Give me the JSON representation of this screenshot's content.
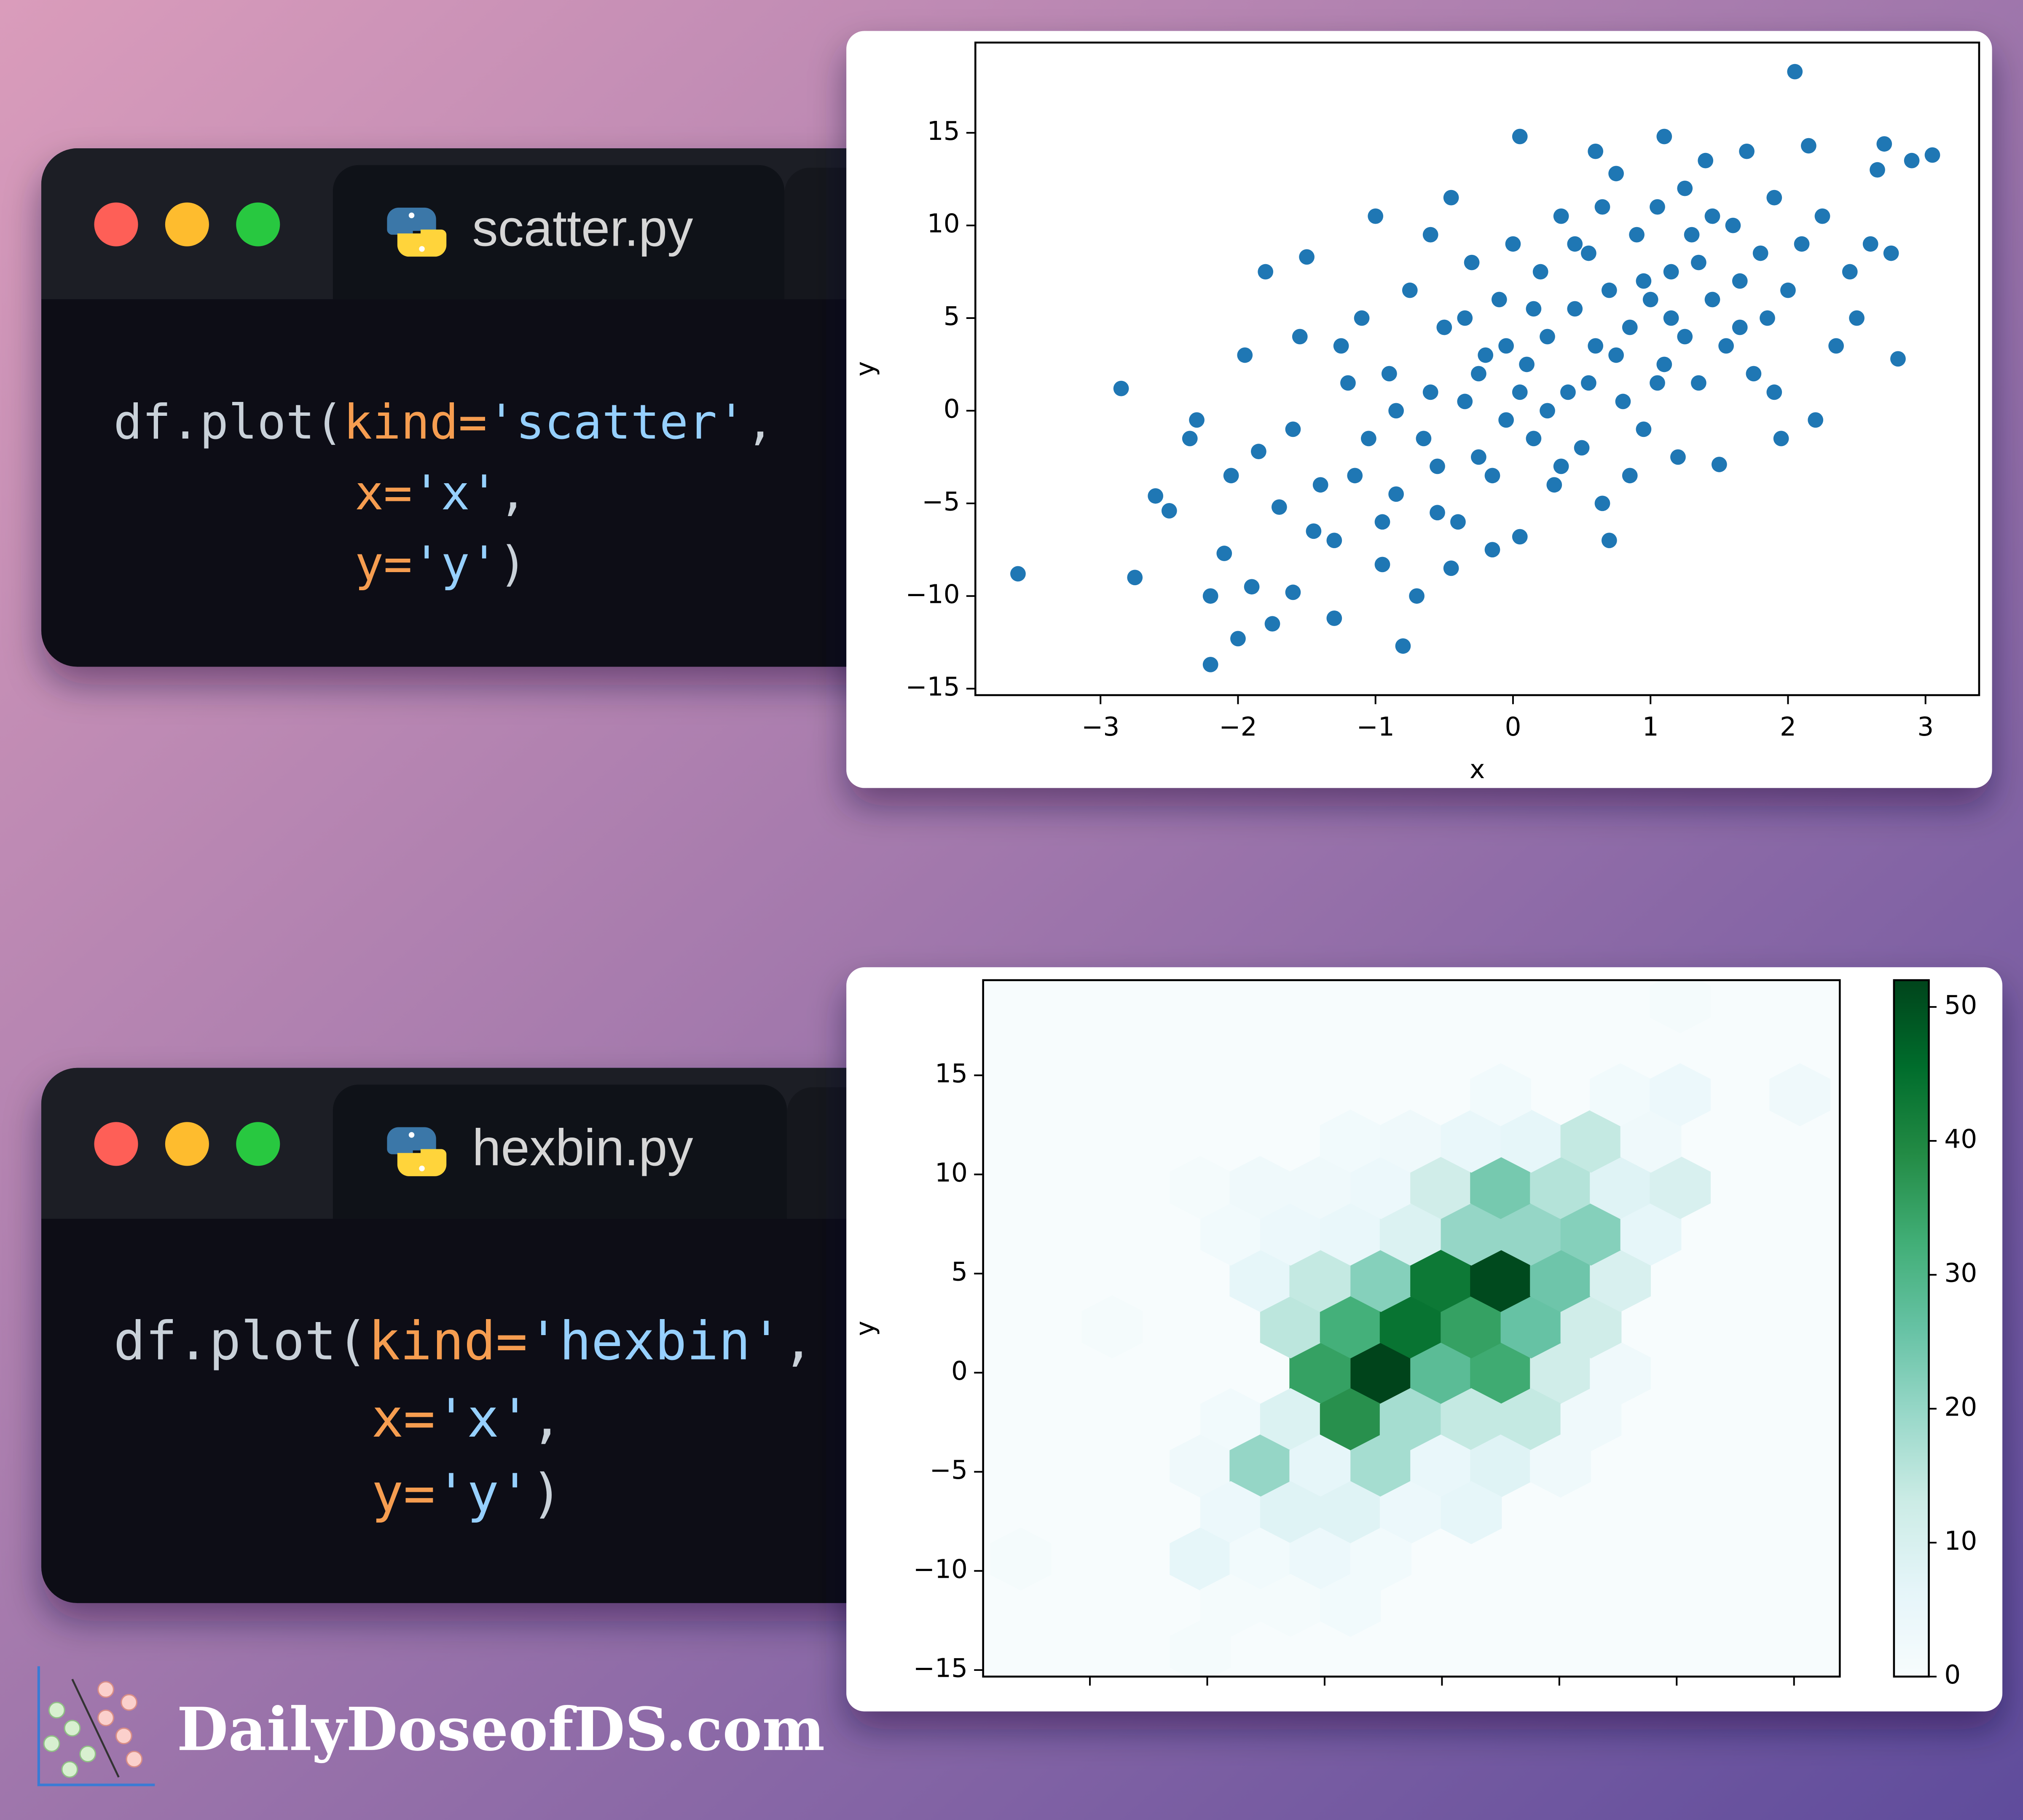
{
  "windows": [
    {
      "filename": "scatter.py",
      "code": [
        [
          "df.plot(",
          "kind=",
          "'scatter'",
          ","
        ],
        [
          "x=",
          "'x'",
          ","
        ],
        [
          "y=",
          "'y'",
          ")"
        ]
      ]
    },
    {
      "filename": "hexbin.py",
      "code": [
        [
          "df.plot(",
          "kind=",
          "'hexbin'",
          ","
        ],
        [
          "x=",
          "'x'",
          ","
        ],
        [
          "y=",
          "'y'",
          ")"
        ]
      ]
    }
  ],
  "brand": "DailyDoseofDS.com",
  "chart_data": [
    {
      "type": "scatter",
      "x_label": "x",
      "y_label": "y",
      "color": "#1f77b4",
      "x": [
        -3.6,
        -2.85,
        -2.75,
        -2.6,
        -2.5,
        -2.35,
        -2.3,
        -2.2,
        -2.2,
        -2.1,
        -2,
        -1.9,
        -1.95,
        -1.8,
        -1.85,
        -1.7,
        -1.6,
        -1.5,
        -1.4,
        -1.3,
        -1.3,
        -1.2,
        -1.1,
        -1.05,
        -1,
        -0.95,
        -0.9,
        -0.85,
        -0.8,
        -0.75,
        -0.7,
        -0.6,
        -0.55,
        -0.5,
        -0.45,
        -0.4,
        -0.35,
        -0.3,
        -0.25,
        -0.2,
        -0.15,
        -0.1,
        -0.05,
        0,
        0.05,
        0.05,
        0.1,
        0.15,
        0.2,
        0.25,
        0.3,
        0.35,
        0.4,
        0.45,
        0.5,
        0.55,
        0.6,
        0.6,
        0.65,
        0.7,
        0.75,
        0.8,
        0.85,
        0.9,
        0.95,
        1,
        1.05,
        1.1,
        1.1,
        1.15,
        1.2,
        1.25,
        1.3,
        1.35,
        1.4,
        1.45,
        1.5,
        1.55,
        1.6,
        1.65,
        1.7,
        1.75,
        1.8,
        1.85,
        1.9,
        1.95,
        2,
        2.05,
        2.1,
        2.15,
        2.2,
        2.25,
        2.35,
        2.45,
        2.5,
        2.6,
        2.65,
        2.7,
        2.75,
        2.8,
        2.9,
        3.05,
        -1.6,
        -1.45,
        -1.15,
        -0.95,
        -0.65,
        -0.45,
        -0.25,
        0.15,
        0.35,
        0.55,
        0.75,
        0.95,
        1.15,
        1.35,
        -1.25,
        -0.85,
        -0.55,
        -0.35,
        0.25,
        0.45,
        0.65,
        0.85,
        1.05,
        1.25,
        1.45,
        1.65,
        -2.05,
        -1.75,
        -1.55,
        -0.05,
        0.05,
        -0.15,
        0.7,
        -0.6,
        1.9
      ],
      "y": [
        -8.8,
        1.2,
        -9,
        -4.6,
        -5.4,
        -1.5,
        -0.5,
        -13.7,
        -10,
        -7.7,
        -12.3,
        -9.5,
        3,
        7.5,
        -2.2,
        -5.2,
        -9.8,
        8.3,
        -4,
        -7,
        -11.2,
        1.5,
        5,
        -1.5,
        10.5,
        -8.3,
        2,
        -4.5,
        -12.7,
        6.5,
        -10,
        1,
        -3,
        4.5,
        11.5,
        -6,
        0.5,
        8,
        -2.5,
        3,
        -7.5,
        6,
        -0.5,
        9,
        14.8,
        -6.8,
        2.5,
        -1.5,
        7.5,
        4,
        -4,
        10.5,
        1,
        5.5,
        -2,
        8.5,
        14,
        3.5,
        -5,
        6.5,
        12.8,
        0.5,
        4.5,
        9.5,
        -1,
        6,
        11,
        14.8,
        2.5,
        7.5,
        -2.5,
        4,
        9.5,
        1.5,
        13.5,
        6,
        -2.9,
        3.5,
        10,
        7,
        14,
        2,
        8.5,
        5,
        11.5,
        -1.5,
        6.5,
        18.3,
        9,
        14.3,
        -0.5,
        10.5,
        3.5,
        7.5,
        5,
        9,
        13,
        14.4,
        8.5,
        2.8,
        13.5,
        13.8,
        -1,
        -6.5,
        -3.5,
        -6,
        -1.5,
        -8.5,
        2,
        5.5,
        -3,
        1.5,
        3,
        7,
        5,
        8,
        3.5,
        0,
        -5.5,
        5,
        0,
        9,
        11,
        -3.5,
        1.5,
        12,
        10.5,
        4.5,
        -3.5,
        -11.5,
        4,
        3.5,
        1,
        -3.5,
        -7,
        9.5,
        1
      ],
      "xlim": [
        -3.91,
        3.39
      ],
      "ylim": [
        -15.35,
        19.87
      ],
      "xticks": [
        {
          "value": -3,
          "label": "−3"
        },
        {
          "value": -2,
          "label": "−2"
        },
        {
          "value": -1,
          "label": "−1"
        },
        0,
        1,
        2,
        3
      ],
      "yticks": [
        {
          "value": -15,
          "label": "−15"
        },
        {
          "value": -10,
          "label": "−10"
        },
        {
          "value": -5,
          "label": "−5"
        },
        0,
        5,
        10,
        15
      ]
    },
    {
      "type": "hexbin",
      "y_label": "y",
      "colormap": "BuGn",
      "clim": [
        0,
        52
      ],
      "cticks": [
        0,
        10,
        20,
        30,
        40,
        50
      ],
      "x": [
        -1.04,
        -0.52,
        -0.01,
        0.5,
        1.01,
        1.52,
        -1.29,
        -0.78,
        -0.27,
        0.25,
        0.76,
        1.27,
        -2.81,
        -1.55,
        -1.04,
        -0.52,
        -0.01,
        0.5,
        1.01,
        1.52,
        -1.8,
        -1.29,
        -0.78,
        -0.27,
        0.25,
        0.76,
        1.27,
        1.78,
        -2.06,
        -1.55,
        -1.04,
        -0.52,
        -0.01,
        0.5,
        1.01,
        1.52,
        2.03,
        -0.78,
        -0.27,
        0.25,
        0.76,
        1.27,
        1.78,
        0.5,
        1.52,
        2.03,
        3.05,
        2.03,
        -1.8,
        -1.29,
        -0.78,
        -0.27,
        0.25,
        0.76,
        1.27,
        -2.06,
        -1.55,
        -1.04,
        -0.52,
        -0.01,
        0.5,
        1.01,
        -1.8,
        -1.29,
        -0.78,
        -0.27,
        0.25,
        -3.59,
        -2.06,
        -1.55,
        -1.04,
        -0.52,
        -1.8,
        -1.29,
        -0.78,
        -2.06
      ],
      "y": [
        -0.03,
        -0.03,
        -0.03,
        -0.03,
        -0.03,
        -0.03,
        2.31,
        2.31,
        2.31,
        2.31,
        2.31,
        2.31,
        2.31,
        4.65,
        4.65,
        4.65,
        4.65,
        4.65,
        4.65,
        4.65,
        6.99,
        6.99,
        6.99,
        6.99,
        6.99,
        6.99,
        6.99,
        6.99,
        9.34,
        9.34,
        9.34,
        9.34,
        9.34,
        9.34,
        9.34,
        9.34,
        9.34,
        11.68,
        11.68,
        11.68,
        11.68,
        11.68,
        11.68,
        14.02,
        14.02,
        14.02,
        14.02,
        18.71,
        -2.37,
        -2.37,
        -2.37,
        -2.37,
        -2.37,
        -2.37,
        -2.37,
        -4.71,
        -4.71,
        -4.71,
        -4.71,
        -4.71,
        -4.71,
        -4.71,
        -7.06,
        -7.06,
        -7.06,
        -7.06,
        -7.06,
        -9.4,
        -9.4,
        -9.4,
        -9.4,
        -9.4,
        -11.74,
        -11.74,
        -11.74,
        -14.08
      ],
      "counts": [
        35,
        52,
        28,
        33,
        12,
        3,
        15,
        32,
        44,
        35,
        26,
        12,
        1,
        6,
        14,
        22,
        43,
        51,
        25,
        10,
        2,
        4,
        5,
        9,
        20,
        20,
        22,
        6,
        1,
        3,
        3,
        4,
        12,
        24,
        16,
        8,
        10,
        2,
        3,
        5,
        6,
        14,
        3,
        2,
        2,
        4,
        3,
        1,
        2,
        9,
        38,
        18,
        14,
        14,
        3,
        3,
        20,
        6,
        18,
        5,
        8,
        3,
        4,
        8,
        8,
        4,
        6,
        1,
        6,
        2,
        4,
        2,
        1,
        1,
        2,
        1
      ],
      "xlim": [
        -3.91,
        3.39
      ],
      "ylim": [
        -15.33,
        19.8
      ],
      "xticks": [
        -3,
        -2,
        -1,
        0,
        1,
        2,
        3
      ],
      "xticklabels": false,
      "yticks": [
        {
          "value": -15,
          "label": "−15"
        },
        {
          "value": -10,
          "label": "−10"
        },
        {
          "value": -5,
          "label": "−5"
        },
        0,
        5,
        10,
        15
      ]
    }
  ]
}
